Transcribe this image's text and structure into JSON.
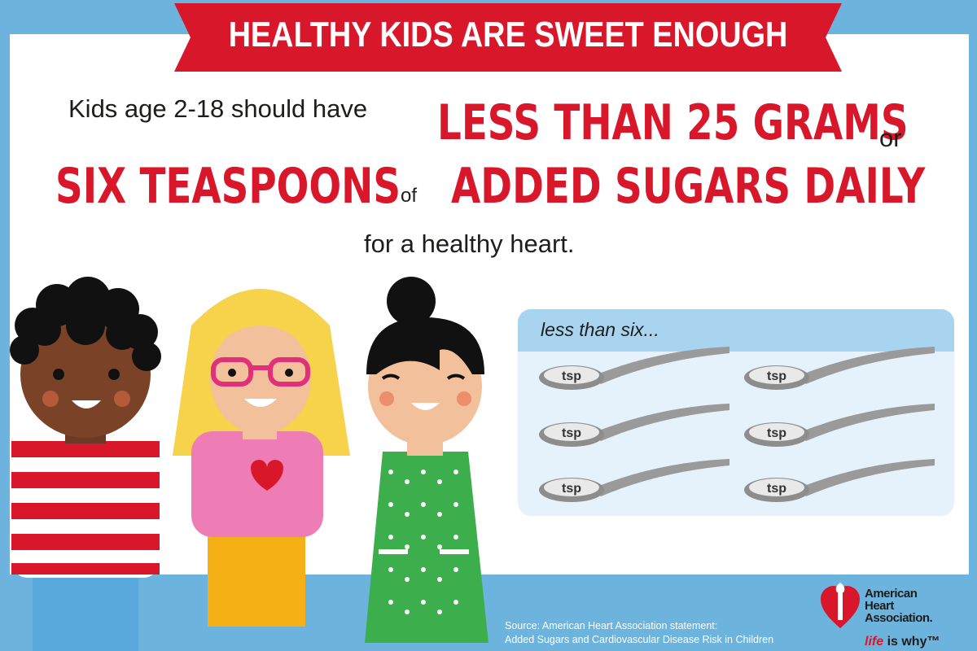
{
  "banner": {
    "title": "HEALTHY KIDS ARE SWEET ENOUGH"
  },
  "headline": {
    "line1_plain": "Kids age 2-18 should have",
    "line1_red": "LESS THAN 25 GRAMS",
    "line1_or": "or",
    "line2_red_a": "SIX TEASPOONS",
    "line2_of": "of",
    "line2_red_b": "ADDED SUGARS DAILY",
    "line3": "for a healthy heart."
  },
  "spoon_panel": {
    "label": "less than six...",
    "spoon_label": "tsp",
    "spoon_count": 6
  },
  "source": {
    "line1": "Source: American Heart Association statement:",
    "line2": "Added Sugars and Cardiovascular Disease Risk in Children"
  },
  "logo": {
    "line1": "American",
    "line2": "Heart",
    "line3": "Association.",
    "tagline_a": "life",
    "tagline_b": " is why™"
  },
  "colors": {
    "accent_red": "#d8182a",
    "sky_blue": "#6cb4de",
    "panel_blue": "#a9d4f0"
  }
}
